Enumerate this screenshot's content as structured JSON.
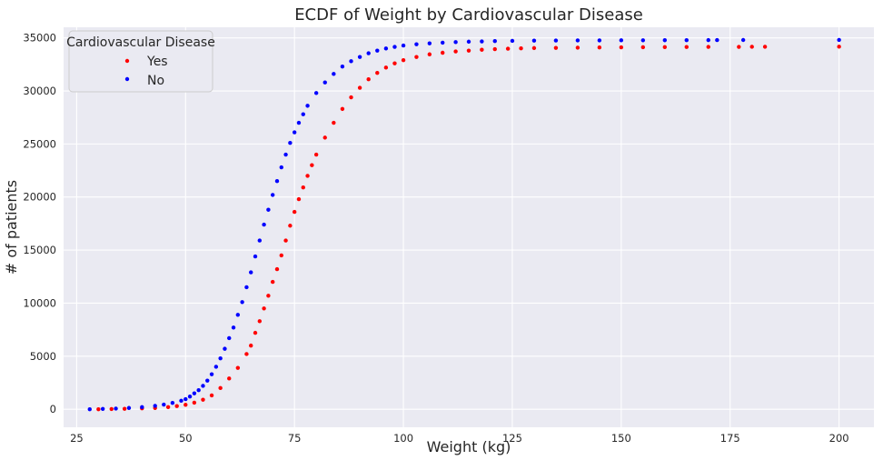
{
  "chart_data": {
    "type": "scatter",
    "title": "ECDF of Weight by Cardiovascular Disease",
    "xlabel": "Weight (kg)",
    "ylabel": "# of patients",
    "xlim": [
      22,
      208
    ],
    "ylim": [
      -1700,
      36000
    ],
    "xticks": [
      25,
      50,
      75,
      100,
      125,
      150,
      175,
      200
    ],
    "yticks": [
      0,
      5000,
      10000,
      15000,
      20000,
      25000,
      30000,
      35000
    ],
    "grid": true,
    "background": "#eaeaf2",
    "legend": {
      "title": "Cardiovascular Disease",
      "placement": "top-left"
    },
    "series": [
      {
        "name": "Yes",
        "color": "#ff0000",
        "points": [
          [
            30,
            0
          ],
          [
            33,
            20
          ],
          [
            36,
            40
          ],
          [
            40,
            80
          ],
          [
            43,
            120
          ],
          [
            46,
            200
          ],
          [
            48,
            300
          ],
          [
            50,
            420
          ],
          [
            52,
            620
          ],
          [
            54,
            900
          ],
          [
            56,
            1300
          ],
          [
            58,
            2000
          ],
          [
            60,
            2900
          ],
          [
            62,
            3900
          ],
          [
            64,
            5200
          ],
          [
            65,
            6000
          ],
          [
            66,
            7200
          ],
          [
            67,
            8300
          ],
          [
            68,
            9500
          ],
          [
            69,
            10700
          ],
          [
            70,
            12000
          ],
          [
            71,
            13200
          ],
          [
            72,
            14500
          ],
          [
            73,
            15900
          ],
          [
            74,
            17300
          ],
          [
            75,
            18600
          ],
          [
            76,
            19800
          ],
          [
            77,
            20900
          ],
          [
            78,
            22000
          ],
          [
            79,
            23000
          ],
          [
            80,
            24000
          ],
          [
            82,
            25600
          ],
          [
            84,
            27000
          ],
          [
            86,
            28300
          ],
          [
            88,
            29400
          ],
          [
            90,
            30300
          ],
          [
            92,
            31100
          ],
          [
            94,
            31700
          ],
          [
            96,
            32200
          ],
          [
            98,
            32600
          ],
          [
            100,
            32900
          ],
          [
            103,
            33200
          ],
          [
            106,
            33450
          ],
          [
            109,
            33600
          ],
          [
            112,
            33720
          ],
          [
            115,
            33800
          ],
          [
            118,
            33880
          ],
          [
            121,
            33940
          ],
          [
            124,
            33980
          ],
          [
            127,
            34010
          ],
          [
            130,
            34040
          ],
          [
            135,
            34060
          ],
          [
            140,
            34080
          ],
          [
            145,
            34095
          ],
          [
            150,
            34110
          ],
          [
            155,
            34120
          ],
          [
            160,
            34130
          ],
          [
            165,
            34140
          ],
          [
            170,
            34150
          ],
          [
            177,
            34155
          ],
          [
            180,
            34160
          ],
          [
            183,
            34165
          ],
          [
            200,
            34170
          ]
        ]
      },
      {
        "name": "No",
        "color": "#0000ff",
        "points": [
          [
            28,
            0
          ],
          [
            31,
            30
          ],
          [
            34,
            60
          ],
          [
            37,
            120
          ],
          [
            40,
            200
          ],
          [
            43,
            320
          ],
          [
            45,
            440
          ],
          [
            47,
            600
          ],
          [
            49,
            800
          ],
          [
            50,
            950
          ],
          [
            51,
            1200
          ],
          [
            52,
            1500
          ],
          [
            53,
            1800
          ],
          [
            54,
            2200
          ],
          [
            55,
            2700
          ],
          [
            56,
            3300
          ],
          [
            57,
            4000
          ],
          [
            58,
            4800
          ],
          [
            59,
            5700
          ],
          [
            60,
            6700
          ],
          [
            61,
            7700
          ],
          [
            62,
            8900
          ],
          [
            63,
            10100
          ],
          [
            64,
            11500
          ],
          [
            65,
            12900
          ],
          [
            66,
            14400
          ],
          [
            67,
            15900
          ],
          [
            68,
            17400
          ],
          [
            69,
            18800
          ],
          [
            70,
            20200
          ],
          [
            71,
            21500
          ],
          [
            72,
            22800
          ],
          [
            73,
            24000
          ],
          [
            74,
            25100
          ],
          [
            75,
            26100
          ],
          [
            76,
            27000
          ],
          [
            77,
            27800
          ],
          [
            78,
            28600
          ],
          [
            80,
            29800
          ],
          [
            82,
            30800
          ],
          [
            84,
            31600
          ],
          [
            86,
            32300
          ],
          [
            88,
            32800
          ],
          [
            90,
            33200
          ],
          [
            92,
            33550
          ],
          [
            94,
            33800
          ],
          [
            96,
            34000
          ],
          [
            98,
            34150
          ],
          [
            100,
            34280
          ],
          [
            103,
            34400
          ],
          [
            106,
            34480
          ],
          [
            109,
            34550
          ],
          [
            112,
            34600
          ],
          [
            115,
            34640
          ],
          [
            118,
            34670
          ],
          [
            121,
            34700
          ],
          [
            125,
            34720
          ],
          [
            130,
            34740
          ],
          [
            135,
            34750
          ],
          [
            140,
            34760
          ],
          [
            145,
            34765
          ],
          [
            150,
            34770
          ],
          [
            155,
            34775
          ],
          [
            160,
            34780
          ],
          [
            165,
            34785
          ],
          [
            170,
            34790
          ],
          [
            172,
            34795
          ],
          [
            178,
            34800
          ],
          [
            200,
            34810
          ]
        ]
      }
    ]
  }
}
